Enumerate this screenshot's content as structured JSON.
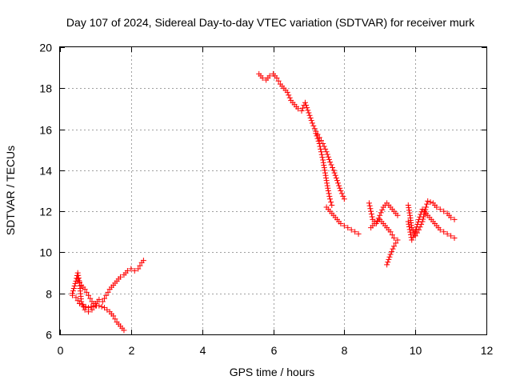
{
  "chart_data": {
    "type": "scatter",
    "title": "Day 107 of 2024, Sidereal Day-to-day VTEC variation (SDTVAR) for receiver murk",
    "xlabel": "GPS time / hours",
    "ylabel": "SDTVAR / TECUs",
    "xlim": [
      0,
      12
    ],
    "ylim": [
      6,
      20
    ],
    "xticks": [
      0,
      2,
      4,
      6,
      8,
      10,
      12
    ],
    "yticks": [
      6,
      8,
      10,
      12,
      14,
      16,
      18,
      20
    ],
    "xtick_labels": [
      "0",
      "2",
      "4",
      "6",
      "8",
      "10",
      "12"
    ],
    "ytick_labels": [
      "6",
      "8",
      "10",
      "12",
      "14",
      "16",
      "18",
      "20"
    ],
    "grid": true,
    "marker": "+",
    "colors": {
      "series": "#ff0000",
      "axis": "#000000",
      "grid": "#a0a0a0"
    },
    "series": [
      {
        "segments": [
          [
            [
              0.35,
              8.0
            ],
            [
              0.45,
              8.6
            ],
            [
              0.5,
              9.0
            ],
            [
              0.55,
              8.5
            ],
            [
              0.6,
              7.6
            ],
            [
              0.7,
              7.2
            ],
            [
              0.8,
              7.1
            ],
            [
              0.9,
              7.2
            ],
            [
              1.0,
              7.5
            ],
            [
              1.1,
              7.7
            ],
            [
              1.2,
              7.6
            ],
            [
              1.3,
              7.9
            ],
            [
              1.4,
              8.2
            ],
            [
              1.5,
              8.4
            ],
            [
              1.6,
              8.6
            ],
            [
              1.7,
              8.8
            ],
            [
              1.8,
              8.9
            ],
            [
              1.9,
              9.1
            ],
            [
              2.0,
              9.2
            ],
            [
              2.1,
              9.1
            ],
            [
              2.2,
              9.2
            ],
            [
              2.3,
              9.5
            ],
            [
              2.35,
              9.6
            ]
          ],
          [
            [
              0.35,
              7.9
            ],
            [
              0.45,
              7.8
            ],
            [
              0.55,
              7.5
            ],
            [
              0.65,
              7.4
            ],
            [
              0.8,
              7.3
            ],
            [
              0.95,
              7.4
            ],
            [
              1.1,
              7.4
            ],
            [
              1.25,
              7.3
            ],
            [
              1.4,
              7.1
            ],
            [
              1.5,
              6.9
            ],
            [
              1.6,
              6.6
            ],
            [
              1.7,
              6.4
            ],
            [
              1.8,
              6.2
            ]
          ],
          [
            [
              0.5,
              8.7
            ],
            [
              0.6,
              8.4
            ],
            [
              0.7,
              8.2
            ],
            [
              0.8,
              7.9
            ],
            [
              0.9,
              7.6
            ],
            [
              1.0,
              7.4
            ]
          ],
          [
            [
              5.6,
              18.7
            ],
            [
              5.7,
              18.5
            ],
            [
              5.8,
              18.4
            ],
            [
              5.9,
              18.6
            ],
            [
              6.0,
              18.7
            ],
            [
              6.1,
              18.5
            ],
            [
              6.2,
              18.2
            ],
            [
              6.3,
              18.0
            ],
            [
              6.4,
              17.8
            ],
            [
              6.5,
              17.4
            ],
            [
              6.6,
              17.2
            ],
            [
              6.7,
              17.0
            ],
            [
              6.8,
              16.9
            ],
            [
              6.9,
              17.3
            ],
            [
              7.0,
              16.8
            ],
            [
              7.1,
              16.3
            ],
            [
              7.2,
              15.9
            ],
            [
              7.3,
              15.6
            ],
            [
              7.4,
              15.3
            ],
            [
              7.5,
              14.9
            ],
            [
              7.6,
              14.4
            ],
            [
              7.7,
              14.0
            ],
            [
              7.8,
              13.5
            ],
            [
              7.9,
              13.0
            ],
            [
              8.0,
              12.6
            ]
          ],
          [
            [
              7.2,
              15.8
            ],
            [
              7.3,
              15.3
            ],
            [
              7.4,
              14.5
            ],
            [
              7.45,
              14.0
            ],
            [
              7.5,
              13.5
            ],
            [
              7.55,
              13.0
            ],
            [
              7.6,
              12.6
            ],
            [
              7.65,
              12.3
            ]
          ],
          [
            [
              7.5,
              12.2
            ],
            [
              7.6,
              12.0
            ],
            [
              7.7,
              11.8
            ],
            [
              7.8,
              11.6
            ],
            [
              7.9,
              11.4
            ],
            [
              8.0,
              11.3
            ],
            [
              8.1,
              11.2
            ],
            [
              8.2,
              11.1
            ],
            [
              8.3,
              11.0
            ],
            [
              8.4,
              10.9
            ]
          ],
          [
            [
              8.7,
              12.4
            ],
            [
              8.8,
              11.6
            ],
            [
              8.9,
              11.4
            ],
            [
              9.0,
              11.8
            ],
            [
              9.1,
              12.2
            ],
            [
              9.2,
              12.4
            ],
            [
              9.3,
              12.2
            ],
            [
              9.4,
              12.0
            ],
            [
              9.5,
              11.8
            ]
          ],
          [
            [
              8.75,
              11.2
            ],
            [
              8.85,
              11.4
            ],
            [
              9.0,
              11.6
            ],
            [
              9.1,
              11.4
            ],
            [
              9.2,
              11.2
            ],
            [
              9.3,
              11.0
            ],
            [
              9.4,
              10.7
            ]
          ],
          [
            [
              9.2,
              9.4
            ],
            [
              9.3,
              9.9
            ],
            [
              9.4,
              10.3
            ],
            [
              9.5,
              10.6
            ]
          ],
          [
            [
              9.8,
              12.3
            ],
            [
              9.85,
              11.8
            ],
            [
              9.9,
              11.2
            ],
            [
              10.0,
              10.8
            ],
            [
              10.1,
              11.1
            ],
            [
              10.2,
              11.5
            ],
            [
              10.3,
              12.2
            ],
            [
              10.35,
              12.5
            ],
            [
              10.5,
              12.4
            ],
            [
              10.6,
              12.2
            ],
            [
              10.7,
              12.1
            ],
            [
              10.8,
              12.0
            ],
            [
              10.9,
              11.9
            ],
            [
              11.0,
              11.7
            ],
            [
              11.1,
              11.6
            ]
          ],
          [
            [
              9.8,
              11.5
            ],
            [
              9.9,
              10.6
            ],
            [
              10.0,
              11.0
            ],
            [
              10.1,
              11.6
            ],
            [
              10.2,
              12.1
            ],
            [
              10.3,
              11.9
            ],
            [
              10.4,
              11.7
            ],
            [
              10.5,
              11.5
            ],
            [
              10.6,
              11.3
            ],
            [
              10.7,
              11.1
            ],
            [
              10.8,
              11.0
            ],
            [
              10.9,
              10.9
            ],
            [
              11.0,
              10.8
            ],
            [
              11.1,
              10.7
            ]
          ]
        ]
      }
    ]
  }
}
